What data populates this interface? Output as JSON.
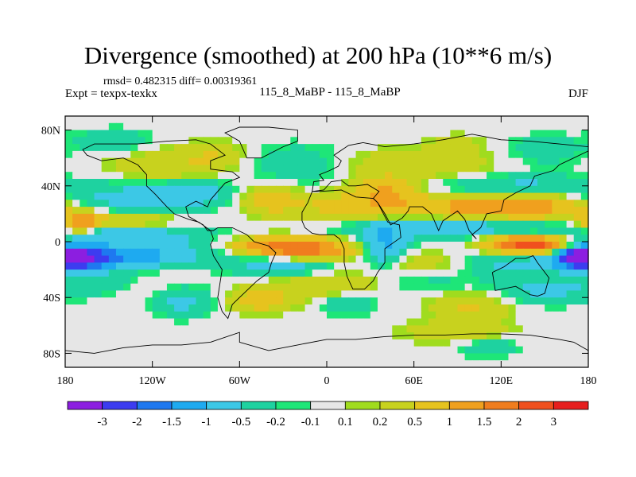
{
  "chart_data": {
    "type": "heatmap",
    "title": "Divergence (smoothed) at 200 hPa (10**6 m/s)",
    "stats_text": "rmsd= 0.482315 diff= 0.00319361",
    "left_label": "Expt = texpx-texkx",
    "center_label": "115_8_MaBP - 115_8_MaBP",
    "right_label": "DJF",
    "x_ticks": [
      {
        "value": -180,
        "label": "180"
      },
      {
        "value": -120,
        "label": "120W"
      },
      {
        "value": -60,
        "label": "60W"
      },
      {
        "value": 0,
        "label": "0"
      },
      {
        "value": 60,
        "label": "60E"
      },
      {
        "value": 120,
        "label": "120E"
      },
      {
        "value": 180,
        "label": "180"
      }
    ],
    "y_ticks": [
      {
        "value": 80,
        "label": "80N"
      },
      {
        "value": 40,
        "label": "40N"
      },
      {
        "value": 0,
        "label": "0"
      },
      {
        "value": -40,
        "label": "40S"
      },
      {
        "value": -80,
        "label": "80S"
      }
    ],
    "xlim": [
      -180,
      180
    ],
    "ylim": [
      -90,
      90
    ],
    "colorbar": {
      "colors": [
        "#8c1ee0",
        "#3c3cf0",
        "#1e78f0",
        "#1eaaf0",
        "#3cc8e6",
        "#1ed2a0",
        "#1ee678",
        "#e6e6e6",
        "#a0dc1e",
        "#c8d21e",
        "#e6c31e",
        "#f0a01e",
        "#f07d1e",
        "#f0501e",
        "#e61e1e"
      ],
      "labels": [
        "-3",
        "-2",
        "-1.5",
        "-1",
        "-0.5",
        "-0.2",
        "-0.1",
        "0.1",
        "0.2",
        "0.5",
        "1",
        "1.5",
        "2",
        "3"
      ]
    },
    "features": [
      {
        "lon": -172,
        "lat": -12,
        "sx": 14,
        "sy": 5,
        "amp": -2.4
      },
      {
        "lon": -140,
        "lat": -12,
        "sx": 30,
        "sy": 6,
        "amp": -0.8
      },
      {
        "lon": -125,
        "lat": -8,
        "sx": 40,
        "sy": 6,
        "amp": -0.6
      },
      {
        "lon": -150,
        "lat": 5,
        "sx": 45,
        "sy": 5,
        "amp": -1.0
      },
      {
        "lon": -170,
        "lat": 12,
        "sx": 10,
        "sy": 6,
        "amp": 1.3
      },
      {
        "lon": -140,
        "lat": 15,
        "sx": 30,
        "sy": 5,
        "amp": 0.7
      },
      {
        "lon": -130,
        "lat": 30,
        "sx": 35,
        "sy": 8,
        "amp": -0.8
      },
      {
        "lon": -90,
        "lat": 36,
        "sx": 20,
        "sy": 6,
        "amp": -0.6
      },
      {
        "lon": -110,
        "lat": 55,
        "sx": 30,
        "sy": 10,
        "amp": 0.45
      },
      {
        "lon": -75,
        "lat": 62,
        "sx": 15,
        "sy": 7,
        "amp": 0.35
      },
      {
        "lon": -130,
        "lat": -32,
        "sx": 25,
        "sy": 8,
        "amp": 0.35
      },
      {
        "lon": -150,
        "lat": -30,
        "sx": 20,
        "sy": 6,
        "amp": -0.6
      },
      {
        "lon": -100,
        "lat": -42,
        "sx": 15,
        "sy": 8,
        "amp": -0.7
      },
      {
        "lon": -145,
        "lat": 72,
        "sx": 20,
        "sy": 6,
        "amp": -0.5
      },
      {
        "lon": -40,
        "lat": -3,
        "sx": 20,
        "sy": 5,
        "amp": 1.2
      },
      {
        "lon": -10,
        "lat": -5,
        "sx": 20,
        "sy": 5,
        "amp": 1.6
      },
      {
        "lon": -30,
        "lat": -18,
        "sx": 25,
        "sy": 5,
        "amp": -0.8
      },
      {
        "lon": 0,
        "lat": -30,
        "sx": 30,
        "sy": 7,
        "amp": 0.5
      },
      {
        "lon": -45,
        "lat": -42,
        "sx": 15,
        "sy": 6,
        "amp": 0.8
      },
      {
        "lon": 15,
        "lat": -45,
        "sx": 12,
        "sy": 5,
        "amp": -0.6
      },
      {
        "lon": -40,
        "lat": 30,
        "sx": 15,
        "sy": 8,
        "amp": 0.7
      },
      {
        "lon": -20,
        "lat": 55,
        "sx": 25,
        "sy": 10,
        "amp": -0.5
      },
      {
        "lon": 20,
        "lat": 25,
        "sx": 30,
        "sy": 8,
        "amp": 0.6
      },
      {
        "lon": 40,
        "lat": 38,
        "sx": 15,
        "sy": 6,
        "amp": 0.9
      },
      {
        "lon": 50,
        "lat": 10,
        "sx": 35,
        "sy": 6,
        "amp": -0.6
      },
      {
        "lon": 40,
        "lat": -5,
        "sx": 10,
        "sy": 10,
        "amp": -1.1
      },
      {
        "lon": 70,
        "lat": -15,
        "sx": 30,
        "sy": 6,
        "amp": 0.6
      },
      {
        "lon": 70,
        "lat": -30,
        "sx": 25,
        "sy": 6,
        "amp": -0.3
      },
      {
        "lon": 100,
        "lat": -45,
        "sx": 20,
        "sy": 8,
        "amp": 0.6
      },
      {
        "lon": 90,
        "lat": -65,
        "sx": 25,
        "sy": 6,
        "amp": 0.5
      },
      {
        "lon": 110,
        "lat": -75,
        "sx": 15,
        "sy": 5,
        "amp": -0.5
      },
      {
        "lon": 140,
        "lat": -2,
        "sx": 20,
        "sy": 5,
        "amp": 2.6
      },
      {
        "lon": 175,
        "lat": -10,
        "sx": 12,
        "sy": 5,
        "amp": -2.3
      },
      {
        "lon": 130,
        "lat": -15,
        "sx": 40,
        "sy": 6,
        "amp": -0.8
      },
      {
        "lon": 150,
        "lat": -35,
        "sx": 30,
        "sy": 7,
        "amp": -0.6
      },
      {
        "lon": 110,
        "lat": 10,
        "sx": 35,
        "sy": 5,
        "amp": -0.6
      },
      {
        "lon": 90,
        "lat": 25,
        "sx": 45,
        "sy": 6,
        "amp": 0.9
      },
      {
        "lon": 140,
        "lat": 25,
        "sx": 30,
        "sy": 6,
        "amp": 1.0
      },
      {
        "lon": 130,
        "lat": 40,
        "sx": 40,
        "sy": 6,
        "amp": -0.6
      },
      {
        "lon": 60,
        "lat": 55,
        "sx": 40,
        "sy": 8,
        "amp": 0.5
      },
      {
        "lon": 150,
        "lat": 65,
        "sx": 20,
        "sy": 8,
        "amp": -0.4
      },
      {
        "lon": 90,
        "lat": 70,
        "sx": 15,
        "sy": 5,
        "amp": 0.3
      }
    ],
    "land_outlines": [
      [
        [
          -168,
          66
        ],
        [
          -160,
          70
        ],
        [
          -140,
          70
        ],
        [
          -130,
          70
        ],
        [
          -110,
          72
        ],
        [
          -90,
          73
        ],
        [
          -80,
          70
        ],
        [
          -70,
          62
        ],
        [
          -80,
          58
        ],
        [
          -80,
          52
        ],
        [
          -65,
          50
        ],
        [
          -60,
          46
        ],
        [
          -70,
          42
        ],
        [
          -75,
          36
        ],
        [
          -80,
          30
        ],
        [
          -82,
          25
        ],
        [
          -90,
          29
        ],
        [
          -97,
          25
        ],
        [
          -95,
          18
        ],
        [
          -90,
          15
        ],
        [
          -85,
          12
        ],
        [
          -82,
          8
        ],
        [
          -78,
          8
        ],
        [
          -75,
          10
        ],
        [
          -65,
          10
        ],
        [
          -55,
          5
        ],
        [
          -50,
          0
        ],
        [
          -40,
          -3
        ],
        [
          -35,
          -8
        ],
        [
          -38,
          -15
        ],
        [
          -40,
          -22
        ],
        [
          -48,
          -28
        ],
        [
          -55,
          -35
        ],
        [
          -60,
          -40
        ],
        [
          -65,
          -45
        ],
        [
          -68,
          -55
        ],
        [
          -72,
          -50
        ],
        [
          -75,
          -40
        ],
        [
          -72,
          -20
        ],
        [
          -78,
          -10
        ],
        [
          -80,
          -2
        ],
        [
          -78,
          2
        ],
        [
          -80,
          8
        ],
        [
          -88,
          14
        ],
        [
          -95,
          16
        ],
        [
          -105,
          20
        ],
        [
          -110,
          25
        ],
        [
          -118,
          34
        ],
        [
          -124,
          40
        ],
        [
          -124,
          48
        ],
        [
          -130,
          55
        ],
        [
          -140,
          60
        ],
        [
          -155,
          58
        ],
        [
          -165,
          62
        ],
        [
          -168,
          66
        ]
      ],
      [
        [
          -55,
          60
        ],
        [
          -45,
          60
        ],
        [
          -30,
          68
        ],
        [
          -20,
          72
        ],
        [
          -20,
          80
        ],
        [
          -40,
          82
        ],
        [
          -60,
          82
        ],
        [
          -70,
          78
        ],
        [
          -60,
          72
        ],
        [
          -55,
          60
        ]
      ],
      [
        [
          -10,
          36
        ],
        [
          -5,
          36
        ],
        [
          10,
          37
        ],
        [
          20,
          32
        ],
        [
          32,
          31
        ],
        [
          35,
          28
        ],
        [
          42,
          14
        ],
        [
          50,
          12
        ],
        [
          51,
          3
        ],
        [
          40,
          -5
        ],
        [
          40,
          -15
        ],
        [
          35,
          -22
        ],
        [
          32,
          -28
        ],
        [
          26,
          -34
        ],
        [
          18,
          -34
        ],
        [
          14,
          -25
        ],
        [
          12,
          -15
        ],
        [
          12,
          -5
        ],
        [
          9,
          2
        ],
        [
          5,
          5
        ],
        [
          -5,
          5
        ],
        [
          -10,
          6
        ],
        [
          -15,
          10
        ],
        [
          -17,
          15
        ],
        [
          -17,
          21
        ],
        [
          -13,
          28
        ],
        [
          -10,
          36
        ]
      ],
      [
        [
          -10,
          36
        ],
        [
          -9,
          43
        ],
        [
          -2,
          44
        ],
        [
          -5,
          48
        ],
        [
          2,
          51
        ],
        [
          8,
          54
        ],
        [
          10,
          58
        ],
        [
          5,
          62
        ],
        [
          15,
          69
        ],
        [
          25,
          71
        ],
        [
          40,
          68
        ],
        [
          60,
          70
        ],
        [
          80,
          73
        ],
        [
          100,
          77
        ],
        [
          120,
          73
        ],
        [
          140,
          72
        ],
        [
          160,
          70
        ],
        [
          180,
          68
        ],
        [
          180,
          65
        ],
        [
          170,
          60
        ],
        [
          160,
          55
        ],
        [
          156,
          51
        ],
        [
          143,
          47
        ],
        [
          140,
          40
        ],
        [
          130,
          35
        ],
        [
          122,
          30
        ],
        [
          120,
          22
        ],
        [
          110,
          20
        ],
        [
          106,
          10
        ],
        [
          100,
          5
        ],
        [
          103,
          2
        ],
        [
          98,
          8
        ],
        [
          95,
          16
        ],
        [
          90,
          22
        ],
        [
          80,
          15
        ],
        [
          77,
          8
        ],
        [
          72,
          20
        ],
        [
          66,
          25
        ],
        [
          57,
          25
        ],
        [
          56,
          22
        ],
        [
          52,
          17
        ],
        [
          44,
          12
        ],
        [
          40,
          20
        ],
        [
          35,
          28
        ],
        [
          32,
          31
        ],
        [
          36,
          36
        ],
        [
          28,
          41
        ],
        [
          20,
          40
        ],
        [
          15,
          40
        ],
        [
          10,
          44
        ],
        [
          3,
          43
        ],
        [
          -2,
          37
        ],
        [
          -10,
          36
        ]
      ],
      [
        [
          114,
          -22
        ],
        [
          122,
          -18
        ],
        [
          130,
          -12
        ],
        [
          137,
          -12
        ],
        [
          142,
          -10
        ],
        [
          145,
          -15
        ],
        [
          153,
          -26
        ],
        [
          150,
          -37
        ],
        [
          145,
          -39
        ],
        [
          140,
          -38
        ],
        [
          130,
          -32
        ],
        [
          116,
          -35
        ],
        [
          114,
          -22
        ]
      ],
      [
        [
          -180,
          -78
        ],
        [
          -160,
          -80
        ],
        [
          -140,
          -76
        ],
        [
          -120,
          -74
        ],
        [
          -100,
          -74
        ],
        [
          -80,
          -72
        ],
        [
          -60,
          -65
        ],
        [
          -60,
          -72
        ],
        [
          -40,
          -78
        ],
        [
          -20,
          -74
        ],
        [
          0,
          -70
        ],
        [
          20,
          -70
        ],
        [
          40,
          -68
        ],
        [
          60,
          -67
        ],
        [
          80,
          -67
        ],
        [
          100,
          -66
        ],
        [
          120,
          -66
        ],
        [
          140,
          -67
        ],
        [
          160,
          -70
        ],
        [
          170,
          -72
        ],
        [
          180,
          -78
        ]
      ]
    ]
  }
}
